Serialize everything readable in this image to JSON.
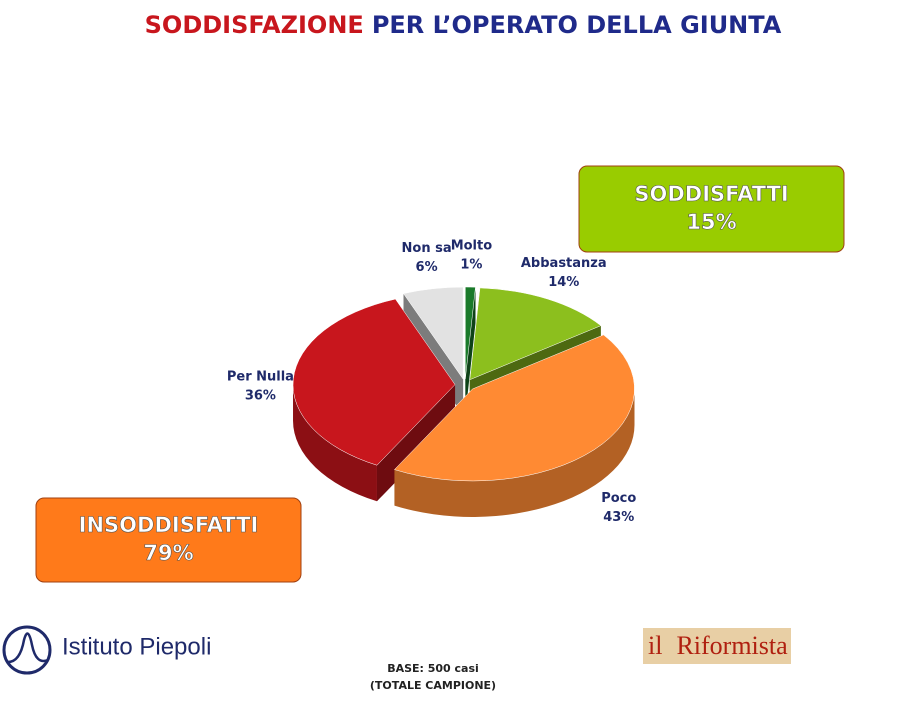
{
  "chart_data": {
    "type": "pie",
    "title": [
      "SODDISFAZIONE",
      "PER L’OPERATO DELLA GIUNTA"
    ],
    "title_colors": [
      "#c8161d",
      "#1f2a8a"
    ],
    "categories": [
      "Molto",
      "Abbastanza",
      "Poco",
      "Per Nulla",
      "Non sa"
    ],
    "values": [
      1,
      14,
      43,
      36,
      6
    ],
    "value_labels": [
      "1%",
      "14%",
      "43%",
      "36%",
      "6%"
    ],
    "colors": [
      "#1a7a2a",
      "#8cbf1e",
      "#ff8a33",
      "#c8161d",
      "#e2e2e2"
    ],
    "annotations": [
      {
        "label": "SODDISFATTI",
        "value": 15,
        "value_label": "15%",
        "color": "#99cc00"
      },
      {
        "label": "INSODDISFATTI",
        "value": 79,
        "value_label": "79%",
        "color": "#ff7a1a"
      }
    ]
  },
  "footer": [
    "BASE: 500 casi",
    "(TOTALE CAMPIONE)"
  ],
  "logos": [
    "Istituto Piepoli",
    "il",
    "Riformista"
  ]
}
